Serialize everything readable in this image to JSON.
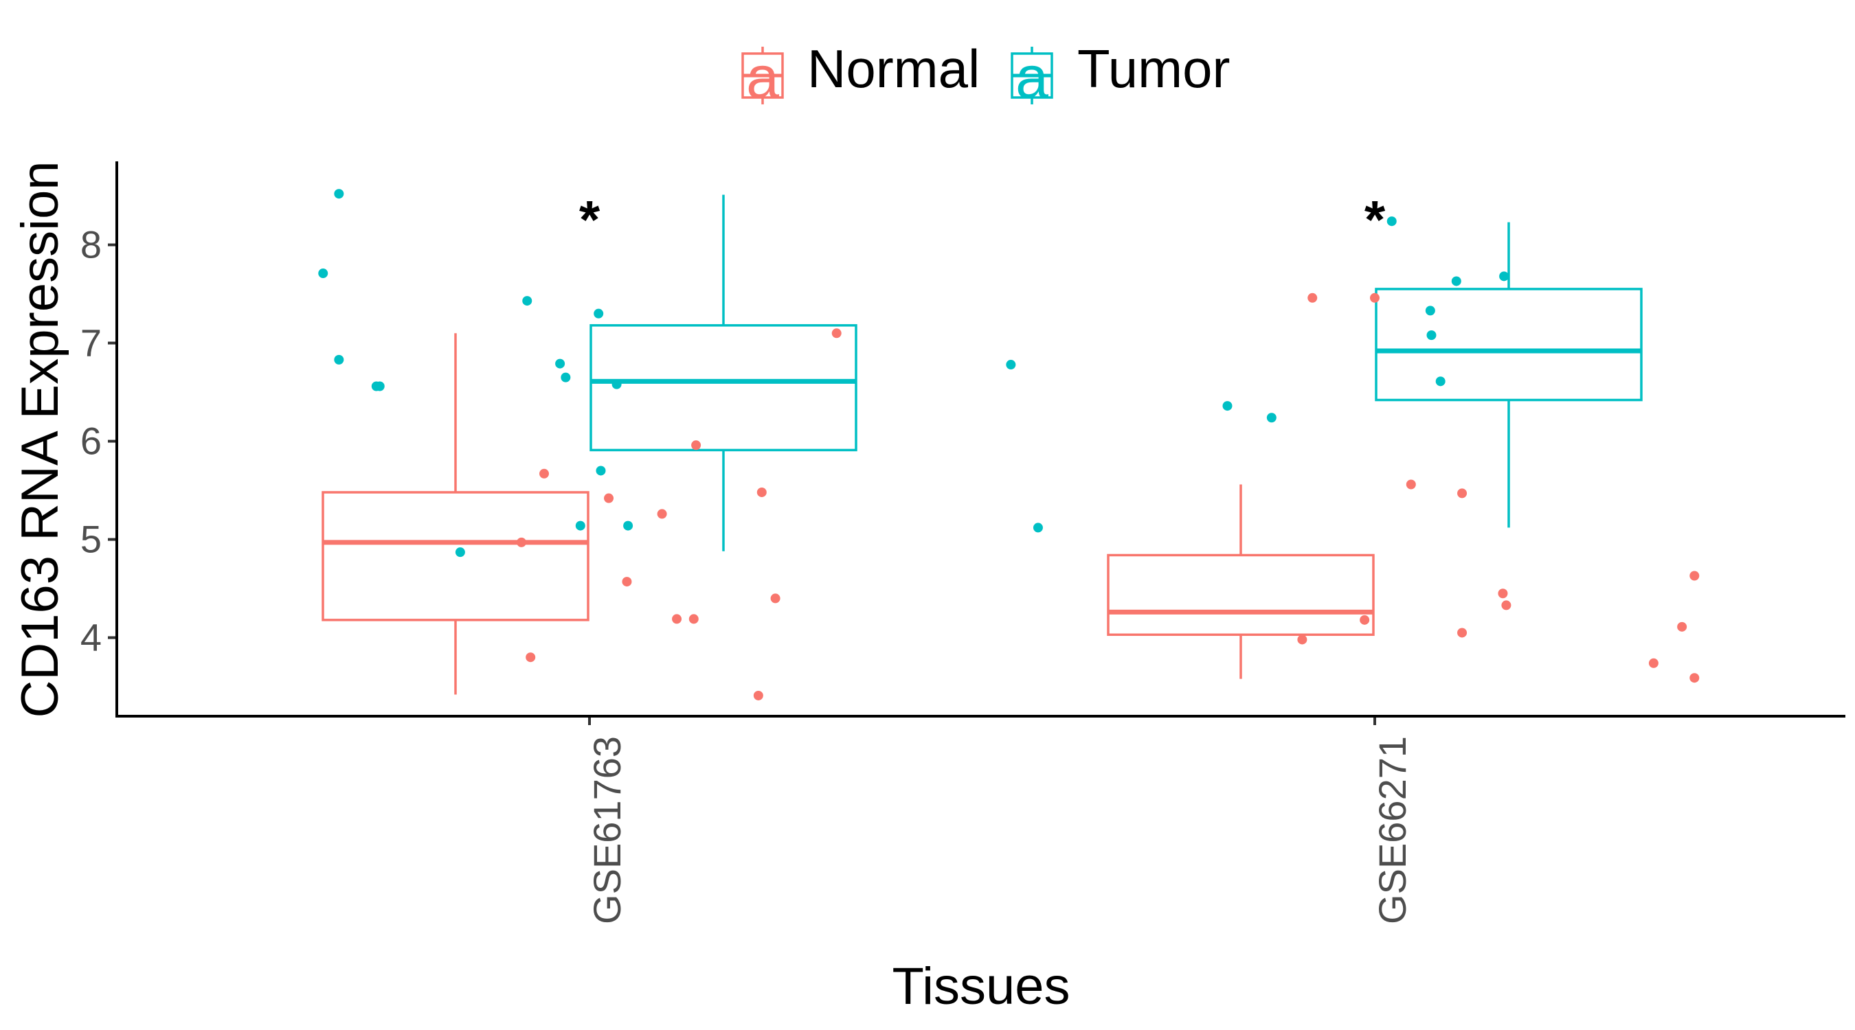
{
  "chart_data": {
    "type": "boxplot",
    "title": "",
    "xlabel": "Tissues",
    "ylabel": "CD163 RNA Expression",
    "ylim": [
      3.2,
      8.85
    ],
    "yticks": [
      4,
      5,
      6,
      7,
      8
    ],
    "ytick_labels": [
      "4",
      "5",
      "6",
      "7",
      "8"
    ],
    "categories": [
      "GSE61763",
      "GSE66271"
    ],
    "legend": {
      "position": "top",
      "entries": [
        {
          "name": "Normal",
          "color": "#F8766D"
        },
        {
          "name": "Tumor",
          "color": "#00BFC4"
        }
      ],
      "key_glyph": "a"
    },
    "annotations": [
      {
        "category": "GSE61763",
        "text": "*",
        "y": 8.35
      },
      {
        "category": "GSE66271",
        "text": "*",
        "y": 8.35
      }
    ],
    "series": [
      {
        "name": "Normal",
        "color": "#F8766D",
        "boxes": [
          {
            "category": "GSE61763",
            "whisker_low": 3.42,
            "q1": 4.18,
            "median": 4.97,
            "q3": 5.48,
            "whisker_high": 7.1
          },
          {
            "category": "GSE66271",
            "whisker_low": 3.58,
            "q1": 4.03,
            "median": 4.26,
            "q3": 4.84,
            "whisker_high": 5.56
          }
        ],
        "points": [
          {
            "category": "GSE61763",
            "jitter": -0.6,
            "y": 4.97
          },
          {
            "category": "GSE61763",
            "jitter": -0.52,
            "y": 3.8
          },
          {
            "category": "GSE61763",
            "jitter": -0.4,
            "y": 5.67
          },
          {
            "category": "GSE61763",
            "jitter": 0.17,
            "y": 5.42
          },
          {
            "category": "GSE61763",
            "jitter": 0.33,
            "y": 4.57
          },
          {
            "category": "GSE61763",
            "jitter": 0.64,
            "y": 5.26
          },
          {
            "category": "GSE61763",
            "jitter": 0.77,
            "y": 4.19
          },
          {
            "category": "GSE61763",
            "jitter": 0.92,
            "y": 4.19
          },
          {
            "category": "GSE61763",
            "jitter": 0.94,
            "y": 5.96
          },
          {
            "category": "GSE61763",
            "jitter": 1.49,
            "y": 3.41
          },
          {
            "category": "GSE61763",
            "jitter": 1.52,
            "y": 5.48
          },
          {
            "category": "GSE61763",
            "jitter": 1.64,
            "y": 4.4
          },
          {
            "category": "GSE61763",
            "jitter": 2.18,
            "y": 7.1
          },
          {
            "category": "GSE66271",
            "jitter": -0.64,
            "y": 3.98
          },
          {
            "category": "GSE66271",
            "jitter": -0.55,
            "y": 7.46
          },
          {
            "category": "GSE66271",
            "jitter": -0.09,
            "y": 4.18
          },
          {
            "category": "GSE66271",
            "jitter": 0.0,
            "y": 7.46
          },
          {
            "category": "GSE66271",
            "jitter": 0.32,
            "y": 5.56
          },
          {
            "category": "GSE66271",
            "jitter": 0.77,
            "y": 5.47
          },
          {
            "category": "GSE66271",
            "jitter": 0.77,
            "y": 4.05
          },
          {
            "category": "GSE66271",
            "jitter": 1.13,
            "y": 4.45
          },
          {
            "category": "GSE66271",
            "jitter": 1.16,
            "y": 4.33
          },
          {
            "category": "GSE66271",
            "jitter": 2.46,
            "y": 3.74
          },
          {
            "category": "GSE66271",
            "jitter": 2.71,
            "y": 4.11
          },
          {
            "category": "GSE66271",
            "jitter": 2.82,
            "y": 3.59
          },
          {
            "category": "GSE66271",
            "jitter": 2.82,
            "y": 4.63
          }
        ]
      },
      {
        "name": "Tumor",
        "color": "#00BFC4",
        "boxes": [
          {
            "category": "GSE61763",
            "whisker_low": 4.88,
            "q1": 5.91,
            "median": 6.61,
            "q3": 7.18,
            "whisker_high": 8.51
          },
          {
            "category": "GSE66271",
            "whisker_low": 5.12,
            "q1": 6.42,
            "median": 6.92,
            "q3": 7.55,
            "whisker_high": 8.23
          }
        ],
        "points": [
          {
            "category": "GSE61763",
            "jitter": -2.21,
            "y": 8.52
          },
          {
            "category": "GSE61763",
            "jitter": -2.35,
            "y": 7.71
          },
          {
            "category": "GSE61763",
            "jitter": -2.21,
            "y": 6.83
          },
          {
            "category": "GSE61763",
            "jitter": -1.88,
            "y": 6.56
          },
          {
            "category": "GSE61763",
            "jitter": -1.85,
            "y": 6.56
          },
          {
            "category": "GSE61763",
            "jitter": -1.14,
            "y": 4.87
          },
          {
            "category": "GSE61763",
            "jitter": -0.55,
            "y": 7.43
          },
          {
            "category": "GSE61763",
            "jitter": -0.26,
            "y": 6.79
          },
          {
            "category": "GSE61763",
            "jitter": -0.21,
            "y": 6.65
          },
          {
            "category": "GSE61763",
            "jitter": -0.08,
            "y": 5.14
          },
          {
            "category": "GSE61763",
            "jitter": 0.08,
            "y": 7.3
          },
          {
            "category": "GSE61763",
            "jitter": 0.1,
            "y": 5.7
          },
          {
            "category": "GSE61763",
            "jitter": 0.24,
            "y": 6.58
          },
          {
            "category": "GSE61763",
            "jitter": 0.34,
            "y": 5.14
          },
          {
            "category": "GSE66271",
            "jitter": -3.21,
            "y": 6.78
          },
          {
            "category": "GSE66271",
            "jitter": -2.97,
            "y": 5.12
          },
          {
            "category": "GSE66271",
            "jitter": -1.3,
            "y": 6.36
          },
          {
            "category": "GSE66271",
            "jitter": -0.91,
            "y": 6.24
          },
          {
            "category": "GSE66271",
            "jitter": 0.15,
            "y": 8.24
          },
          {
            "category": "GSE66271",
            "jitter": 0.49,
            "y": 7.33
          },
          {
            "category": "GSE66271",
            "jitter": 0.5,
            "y": 7.08
          },
          {
            "category": "GSE66271",
            "jitter": 0.58,
            "y": 6.61
          },
          {
            "category": "GSE66271",
            "jitter": 0.72,
            "y": 7.63
          },
          {
            "category": "GSE66271",
            "jitter": 1.14,
            "y": 7.68
          }
        ]
      }
    ]
  }
}
